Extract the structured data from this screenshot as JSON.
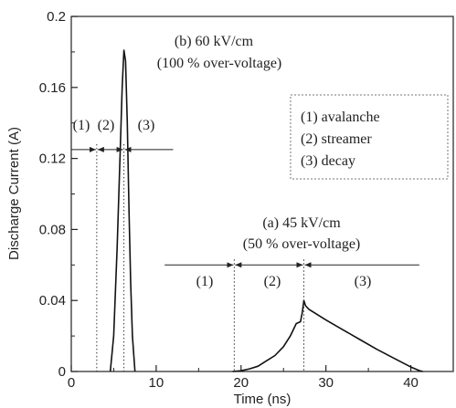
{
  "chart_data": {
    "type": "line",
    "xlabel": "Time (ns)",
    "ylabel": "Discharge Current (A)",
    "xlim": [
      0,
      45
    ],
    "ylim": [
      0,
      0.2
    ],
    "xticks": [
      "0",
      "10",
      "20",
      "30",
      "40"
    ],
    "yticks": [
      "0",
      "0.04",
      "0.08",
      "0.12",
      "0.16",
      "0.2"
    ],
    "grid": false,
    "series": [
      {
        "x": [
          4.6,
          5.0,
          5.4,
          5.8,
          6.0,
          6.2,
          6.4,
          6.6,
          6.8,
          7.0,
          7.2,
          7.5
        ],
        "y": [
          0.0,
          0.02,
          0.07,
          0.13,
          0.16,
          0.181,
          0.175,
          0.14,
          0.09,
          0.05,
          0.02,
          0.0
        ]
      },
      {
        "x": [
          19.0,
          20.0,
          21.0,
          22.0,
          23.0,
          24.0,
          25.0,
          25.8,
          26.5,
          27.0,
          27.2,
          27.4,
          27.6,
          28.0,
          30.0,
          32.0,
          34.0,
          36.0,
          38.0,
          40.0,
          41.0,
          41.4
        ],
        "y": [
          0.0,
          0.0004,
          0.0015,
          0.003,
          0.006,
          0.009,
          0.014,
          0.02,
          0.027,
          0.028,
          0.033,
          0.04,
          0.037,
          0.035,
          0.029,
          0.0235,
          0.018,
          0.0125,
          0.0075,
          0.0025,
          0.0005,
          0.0
        ]
      }
    ],
    "annotations": {
      "b_line1": "(b) 60 kV/cm",
      "b_line2": "(100 % over-voltage)",
      "a_line1": "(a) 45 kV/cm",
      "a_line2": "(50 % over-voltage)",
      "legend": [
        "(1) avalanche",
        "(2) streamer",
        "(3) decay"
      ],
      "phase_labels": [
        "(1)",
        "(2)",
        "(3)"
      ]
    },
    "phase_markers": {
      "b": {
        "y": 0.125,
        "x_start": 0,
        "boundaries": [
          3.0,
          6.2
        ],
        "x_end": 12.0
      },
      "a": {
        "y": 0.06,
        "x_start": 11.0,
        "boundaries": [
          19.2,
          27.4
        ],
        "x_end": 41.0
      }
    }
  }
}
